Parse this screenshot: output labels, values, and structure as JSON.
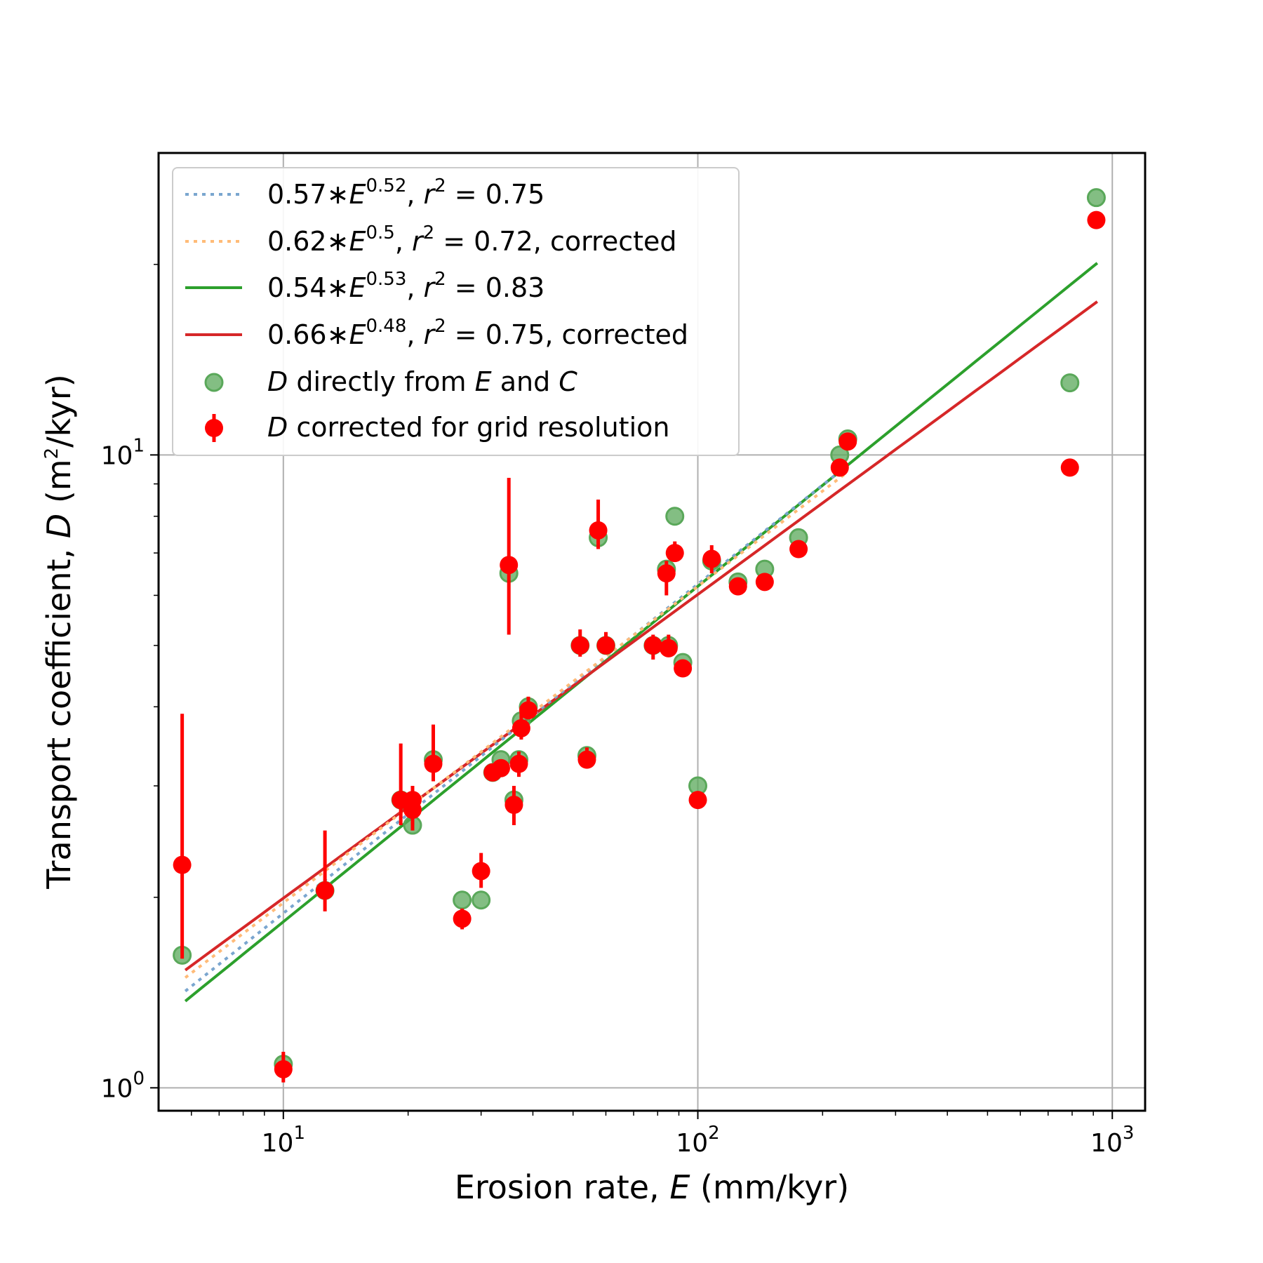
{
  "chart_data": {
    "type": "scatter",
    "title": "",
    "xlabel": {
      "prefix": "Erosion rate, ",
      "var": "E",
      "suffix": " (mm/kyr)"
    },
    "ylabel": {
      "prefix": "Transport coefficient, ",
      "var": "D",
      "unit_pre": " (m",
      "unit_sup": "2",
      "unit_post": "/kyr)"
    },
    "xscale": "log",
    "yscale": "log",
    "xlim": [
      5,
      1200
    ],
    "ylim": [
      0.92,
      30
    ],
    "grid": true,
    "legend_position": "top-left",
    "x_ticks": [
      {
        "value": 10,
        "base": "10",
        "exp": "1"
      },
      {
        "value": 100,
        "base": "10",
        "exp": "2"
      },
      {
        "value": 1000,
        "base": "10",
        "exp": "3"
      }
    ],
    "y_ticks": [
      {
        "value": 1,
        "base": "10",
        "exp": "0"
      },
      {
        "value": 10,
        "base": "10",
        "exp": "1"
      }
    ],
    "fits": [
      {
        "coef": "0.57",
        "exp": "0.52",
        "r2": "0.75",
        "suffix": "",
        "a": 0.57,
        "b": 0.52,
        "x_range": [
          5.8,
          230
        ],
        "color": "#7aa6cf",
        "style": "dotted"
      },
      {
        "coef": "0.62",
        "exp": "0.5",
        "r2": "0.72",
        "suffix": ", corrected",
        "a": 0.62,
        "b": 0.5,
        "x_range": [
          5.8,
          230
        ],
        "color": "#ffbb78",
        "style": "dotted"
      },
      {
        "coef": "0.54",
        "exp": "0.53",
        "r2": "0.83",
        "suffix": "",
        "a": 0.54,
        "b": 0.53,
        "x_range": [
          5.8,
          920
        ],
        "color": "#2ca02c",
        "style": "solid"
      },
      {
        "coef": "0.66",
        "exp": "0.48",
        "r2": "0.75",
        "suffix": ", corrected",
        "a": 0.66,
        "b": 0.48,
        "x_range": [
          5.8,
          920
        ],
        "color": "#d62728",
        "style": "solid"
      }
    ],
    "series": [
      {
        "name": {
          "var1": "D",
          "mid1": " directly from ",
          "var2": "E",
          "mid2": " and ",
          "var3": "C"
        },
        "marker_color": "#5aa85a",
        "points": [
          [
            5.7,
            1.62
          ],
          [
            10.0,
            1.09
          ],
          [
            12.6,
            2.05
          ],
          [
            19.2,
            2.85
          ],
          [
            20.5,
            2.6
          ],
          [
            23.0,
            3.3
          ],
          [
            27.0,
            1.98
          ],
          [
            30.0,
            1.98
          ],
          [
            32.0,
            3.15
          ],
          [
            33.5,
            3.3
          ],
          [
            35.0,
            6.5
          ],
          [
            36.0,
            2.85
          ],
          [
            37.0,
            3.3
          ],
          [
            37.5,
            3.8
          ],
          [
            39.0,
            4.0
          ],
          [
            52.0,
            5.0
          ],
          [
            54.0,
            3.35
          ],
          [
            57.5,
            7.4
          ],
          [
            60.0,
            5.0
          ],
          [
            78.0,
            5.0
          ],
          [
            84.0,
            6.6
          ],
          [
            85.0,
            5.0
          ],
          [
            88.0,
            8.0
          ],
          [
            92.0,
            4.7
          ],
          [
            100.0,
            3.0
          ],
          [
            108.0,
            6.8
          ],
          [
            125.0,
            6.3
          ],
          [
            145.0,
            6.6
          ],
          [
            175.0,
            7.4
          ],
          [
            220.0,
            10.0
          ],
          [
            230.0,
            10.6
          ],
          [
            790.0,
            13.0
          ],
          [
            915.0,
            25.5
          ]
        ]
      },
      {
        "name": {
          "var1": "D",
          "mid1": " corrected for grid resolution",
          "var2": "",
          "mid2": "",
          "var3": ""
        },
        "marker_color": "#ff0000",
        "error_color": "#ff0000",
        "points": [
          [
            5.7,
            2.25,
            1.6,
            3.9
          ],
          [
            10.0,
            1.07,
            1.02,
            1.14
          ],
          [
            12.6,
            2.05,
            1.9,
            2.55
          ],
          [
            19.2,
            2.85,
            2.6,
            3.5
          ],
          [
            20.5,
            2.85,
            2.55,
            3.0
          ],
          [
            20.5,
            2.75,
            2.6,
            2.9
          ],
          [
            23.0,
            3.25,
            3.05,
            3.75
          ],
          [
            27.0,
            1.85,
            1.78,
            1.92
          ],
          [
            30.0,
            2.2,
            2.07,
            2.35
          ],
          [
            32.0,
            3.15,
            3.05,
            3.25
          ],
          [
            33.5,
            3.2,
            3.1,
            3.3
          ],
          [
            35.0,
            6.7,
            5.2,
            9.2
          ],
          [
            36.0,
            2.8,
            2.6,
            3.0
          ],
          [
            37.0,
            3.25,
            3.1,
            3.4
          ],
          [
            37.5,
            3.7,
            3.55,
            4.0
          ],
          [
            39.0,
            3.95,
            3.85,
            4.15
          ],
          [
            52.0,
            5.0,
            4.8,
            5.3
          ],
          [
            54.0,
            3.3,
            3.2,
            3.45
          ],
          [
            57.5,
            7.6,
            7.1,
            8.5
          ],
          [
            60.0,
            5.0,
            4.85,
            5.25
          ],
          [
            78.0,
            5.0,
            4.75,
            5.2
          ],
          [
            84.0,
            6.5,
            6.0,
            6.8
          ],
          [
            85.0,
            4.95,
            4.8,
            5.2
          ],
          [
            88.0,
            7.0,
            6.8,
            7.3
          ],
          [
            92.0,
            4.6,
            4.5,
            4.75
          ],
          [
            100.0,
            2.85,
            2.8,
            2.9
          ],
          [
            108.0,
            6.85,
            6.5,
            7.2
          ],
          [
            125.0,
            6.2,
            6.1,
            6.3
          ],
          [
            145.0,
            6.3,
            6.2,
            6.4
          ],
          [
            175.0,
            7.1,
            7.0,
            7.2
          ],
          [
            220.0,
            9.55,
            9.45,
            9.65
          ],
          [
            230.0,
            10.5,
            10.3,
            10.7
          ],
          [
            790.0,
            9.55,
            9.5,
            9.65
          ],
          [
            915.0,
            23.5,
            23.3,
            23.7
          ]
        ]
      }
    ]
  }
}
